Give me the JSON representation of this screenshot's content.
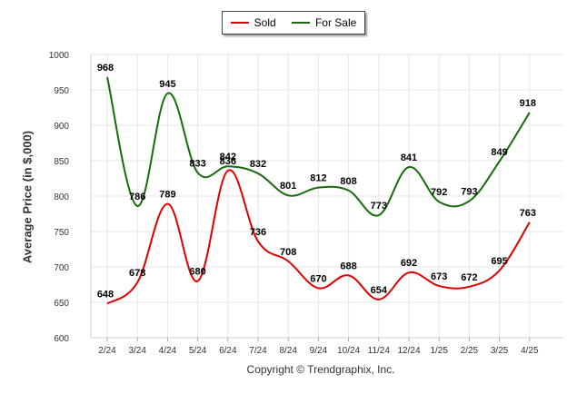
{
  "legend": {
    "sold_label": "Sold",
    "for_sale_label": "For Sale"
  },
  "footer": {
    "copyright": "Copyright © Trendgraphix, Inc."
  },
  "colors": {
    "sold": "#e00000",
    "for_sale": "#1a6b0e",
    "grid": "#e6e6e6"
  },
  "chart_data": {
    "type": "line",
    "title": "",
    "xlabel": "",
    "ylabel": "Average Price (in $,000)",
    "categories": [
      "2/24",
      "3/24",
      "4/24",
      "5/24",
      "6/24",
      "7/24",
      "8/24",
      "9/24",
      "10/24",
      "11/24",
      "12/24",
      "1/25",
      "2/25",
      "3/25",
      "4/25"
    ],
    "ylim": [
      600,
      1000
    ],
    "yticks": [
      600,
      650,
      700,
      750,
      800,
      850,
      900,
      950,
      1000
    ],
    "grid": true,
    "legend_position": "top-center",
    "series": [
      {
        "name": "Sold",
        "values": [
          648,
          678,
          789,
          680,
          836,
          736,
          708,
          670,
          688,
          654,
          692,
          673,
          672,
          695,
          763
        ]
      },
      {
        "name": "For Sale",
        "values": [
          968,
          786,
          945,
          833,
          842,
          832,
          801,
          812,
          808,
          773,
          841,
          792,
          793,
          849,
          918
        ]
      }
    ]
  }
}
